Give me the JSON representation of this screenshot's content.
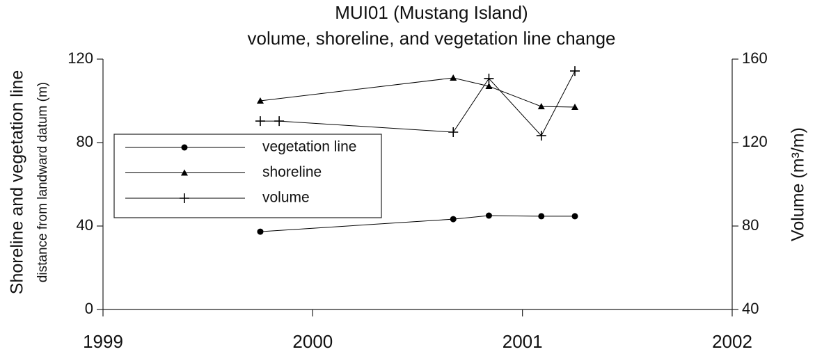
{
  "chart_data": {
    "type": "line",
    "title": "MUI01 (Mustang Island)",
    "subtitle": "volume, shoreline, and vegetation line change",
    "y_label": "Shoreline and vegetation line",
    "y_sublabel": "distance from landward datum (m)",
    "y2_label": "Volume (m³/m)",
    "xlim": [
      1999,
      2002
    ],
    "xticks": [
      1999,
      2000,
      2001,
      2002
    ],
    "ylim": [
      0,
      120
    ],
    "yticks": [
      0,
      40,
      80,
      120
    ],
    "y2lim": [
      40,
      160
    ],
    "y2ticks": [
      40,
      80,
      120,
      160
    ],
    "series": [
      {
        "name": "vegetation line",
        "color": "#000000",
        "marker": "circle",
        "x": [
          1999.75,
          2000.67,
          2000.84,
          2001.09,
          2001.25
        ],
        "values": [
          37.3,
          43.3,
          45,
          44.7,
          44.7
        ]
      },
      {
        "name": "shoreline",
        "color": "#000000",
        "marker": "triangle",
        "x": [
          1999.75,
          2000.67,
          2000.84,
          2001.09,
          2001.25
        ],
        "values": [
          100,
          111,
          107,
          97.3,
          97
        ]
      },
      {
        "name": "volume",
        "color": "#000000",
        "marker": "plus",
        "axis": "y2",
        "x": [
          1999.75,
          1999.84,
          2000.67,
          2000.84,
          2001.09,
          2001.25
        ],
        "values": [
          130.3,
          130.3,
          125,
          150.7,
          123.3,
          154.3
        ]
      }
    ]
  }
}
